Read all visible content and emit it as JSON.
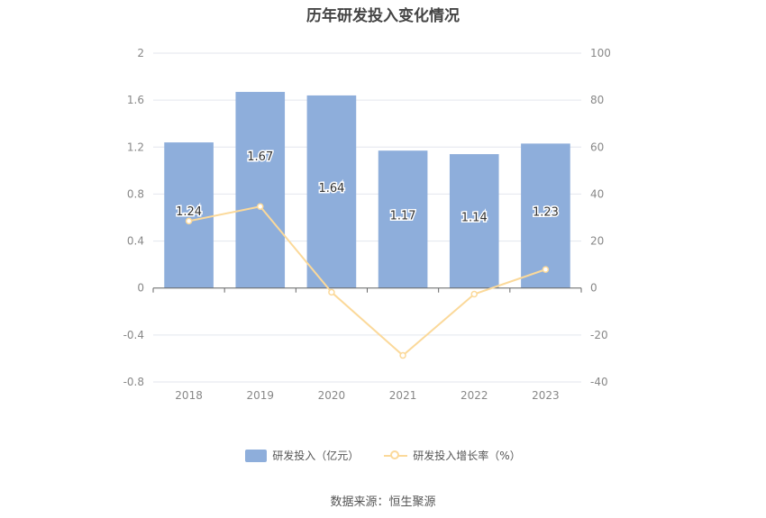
{
  "title": "历年研发投入变化情况",
  "source": "数据来源：恒生聚源",
  "colors": {
    "bar": "#8eaedb",
    "line": "#fbd99a",
    "grid": "#e3e6ee",
    "axis": "#666666",
    "tick_text": "#888888"
  },
  "chart_data": {
    "type": "bar",
    "categories": [
      "2018",
      "2019",
      "2020",
      "2021",
      "2022",
      "2023"
    ],
    "series": [
      {
        "name": "研发投入（亿元）",
        "type": "bar",
        "axis": "left",
        "values": [
          1.24,
          1.67,
          1.64,
          1.17,
          1.14,
          1.23
        ],
        "labels": [
          "1.24",
          "1.67",
          "1.64",
          "1.17",
          "1.14",
          "1.23"
        ]
      },
      {
        "name": "研发投入增长率（%）",
        "type": "line",
        "axis": "right",
        "values": [
          28.5,
          34.7,
          -1.8,
          -28.7,
          -2.6,
          7.9
        ]
      }
    ],
    "y_left": {
      "min": -0.8,
      "max": 2,
      "ticks": [
        "2",
        "1.6",
        "1.2",
        "0.8",
        "0.4",
        "0",
        "-0.4",
        "-0.8"
      ]
    },
    "y_right": {
      "min": -40,
      "max": 100,
      "ticks": [
        "100",
        "80",
        "60",
        "40",
        "20",
        "0",
        "-20",
        "-40"
      ]
    },
    "grid": true,
    "legend_position": "bottom"
  }
}
